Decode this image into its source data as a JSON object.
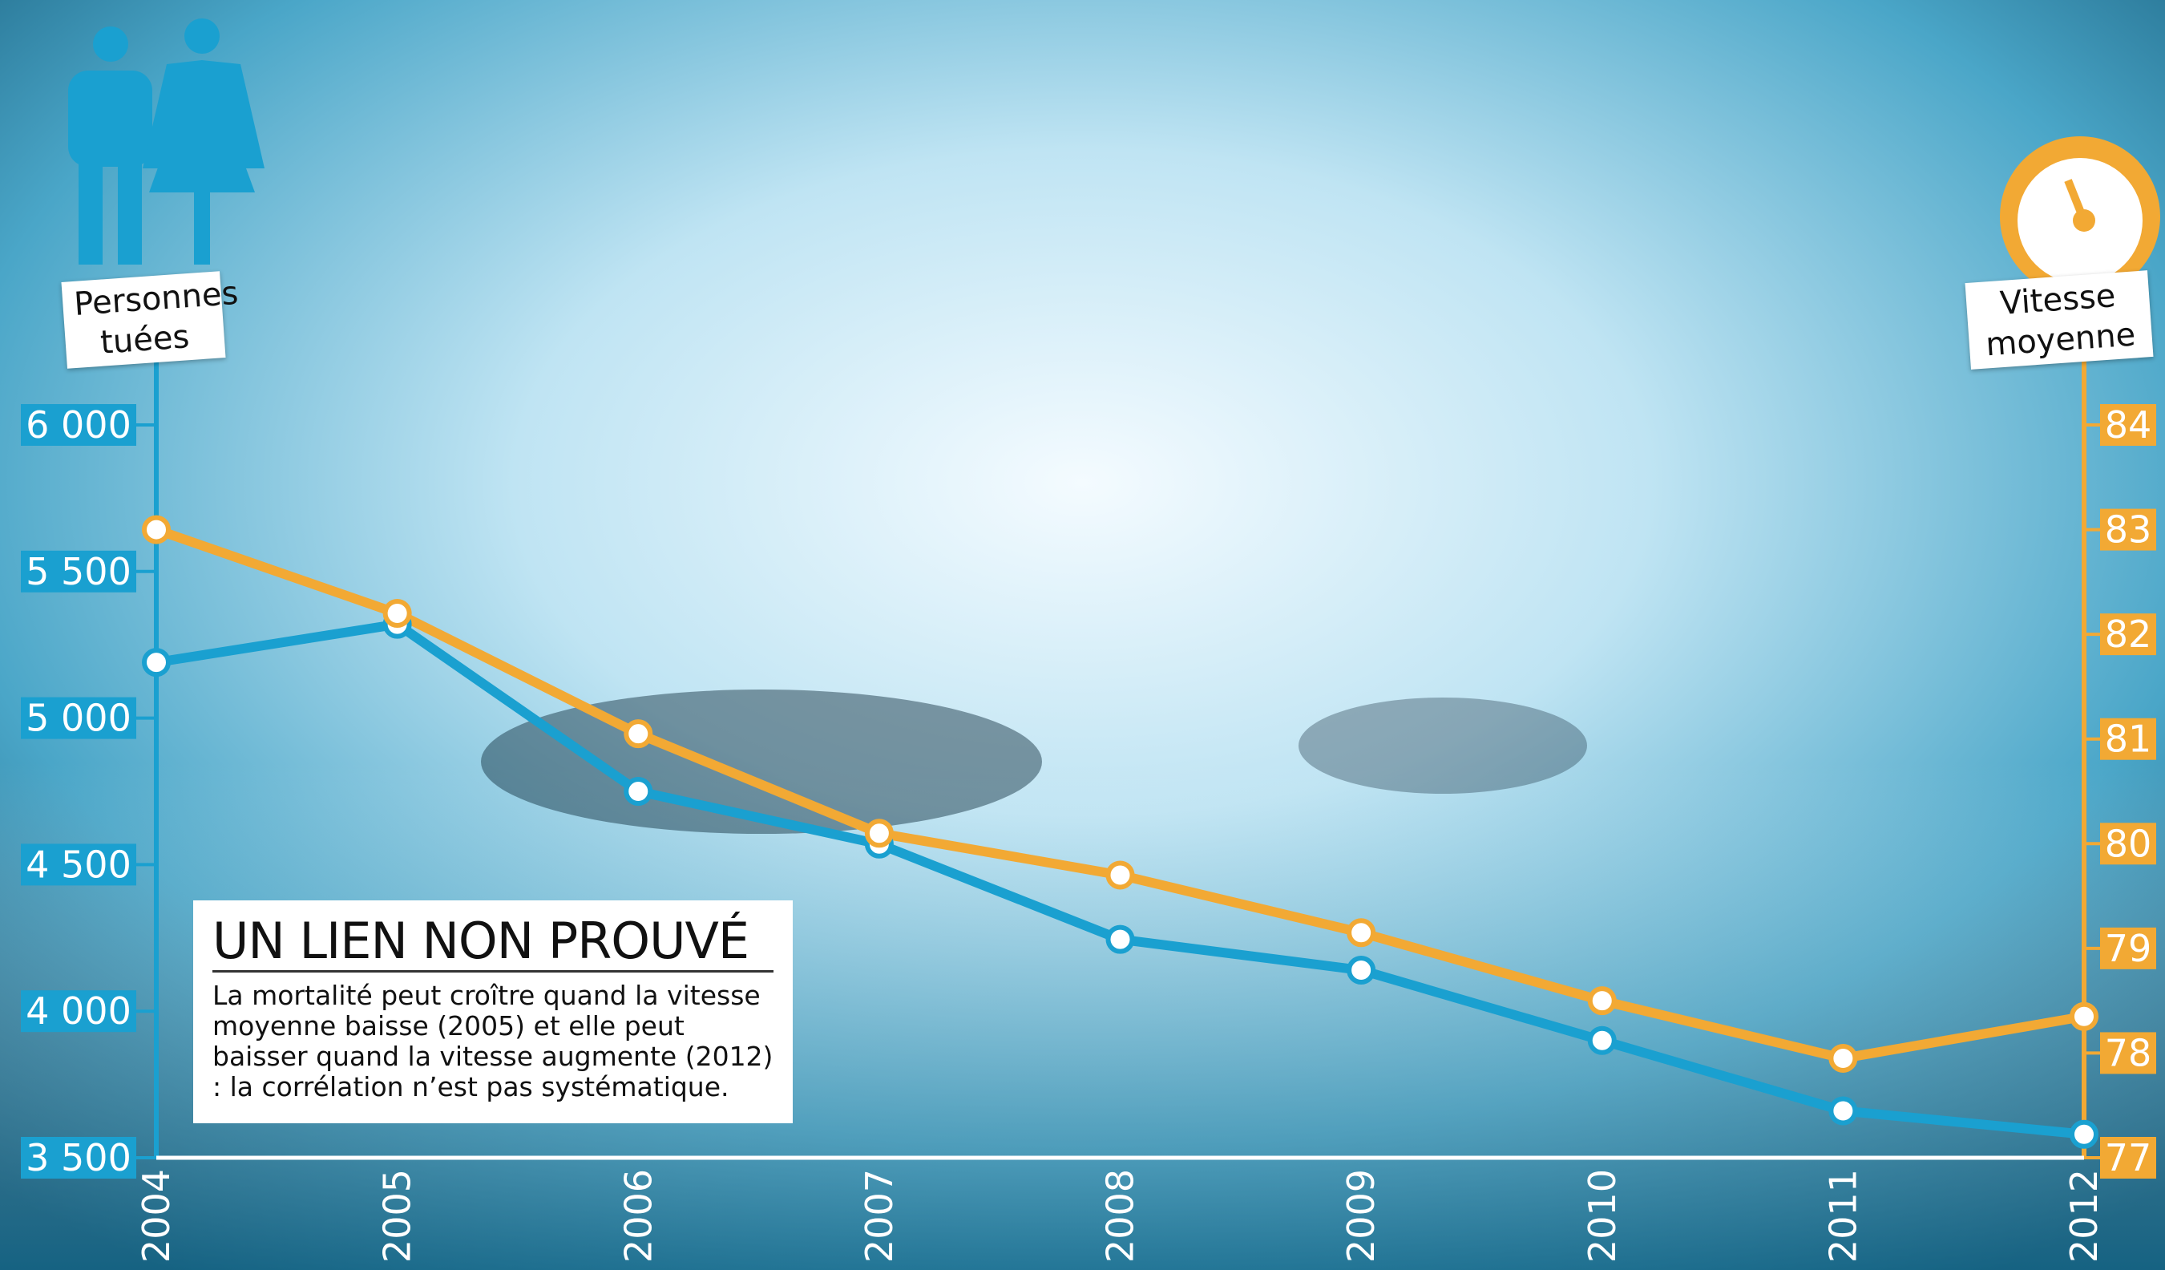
{
  "chart_data": {
    "type": "line",
    "y_label": "Personnes tuées",
    "y2_label": "Vitesse moyenne",
    "categories": [
      "2004",
      "2005",
      "2006",
      "2007",
      "2008",
      "2009",
      "2010",
      "2011",
      "2012"
    ],
    "series": [
      {
        "name": "Personnes tuées",
        "color": "#1aa0d0",
        "values": [
          5190,
          5320,
          4750,
          4570,
          4245,
          4140,
          3900,
          3660,
          3580
        ]
      },
      {
        "name": "Vitesse moyenne",
        "color": "#f2a934",
        "axis": "y2",
        "values": [
          83.0,
          82.2,
          81.05,
          80.1,
          79.7,
          79.15,
          78.5,
          77.95,
          78.35
        ]
      }
    ],
    "ylim": [
      3500,
      6000
    ],
    "yticks": [
      {
        "value": 3500,
        "label": "3 500"
      },
      {
        "value": 4000,
        "label": "4 000"
      },
      {
        "value": 4500,
        "label": "4 500"
      },
      {
        "value": 5000,
        "label": "5 000"
      },
      {
        "value": 5500,
        "label": "5 500"
      },
      {
        "value": 6000,
        "label": "6 000"
      }
    ],
    "y2lim": [
      77,
      84
    ],
    "y2ticks": [
      77,
      78,
      79,
      80,
      81,
      82,
      83,
      84
    ],
    "annotation": {
      "title": "UN LIEN NON PROUVÉ",
      "text": "La mortalité peut croître quand la vitesse moyenne baisse (2005) et elle peut baisser quand la vitesse augmente (2012) : la corrélation n’est pas systématique."
    }
  }
}
